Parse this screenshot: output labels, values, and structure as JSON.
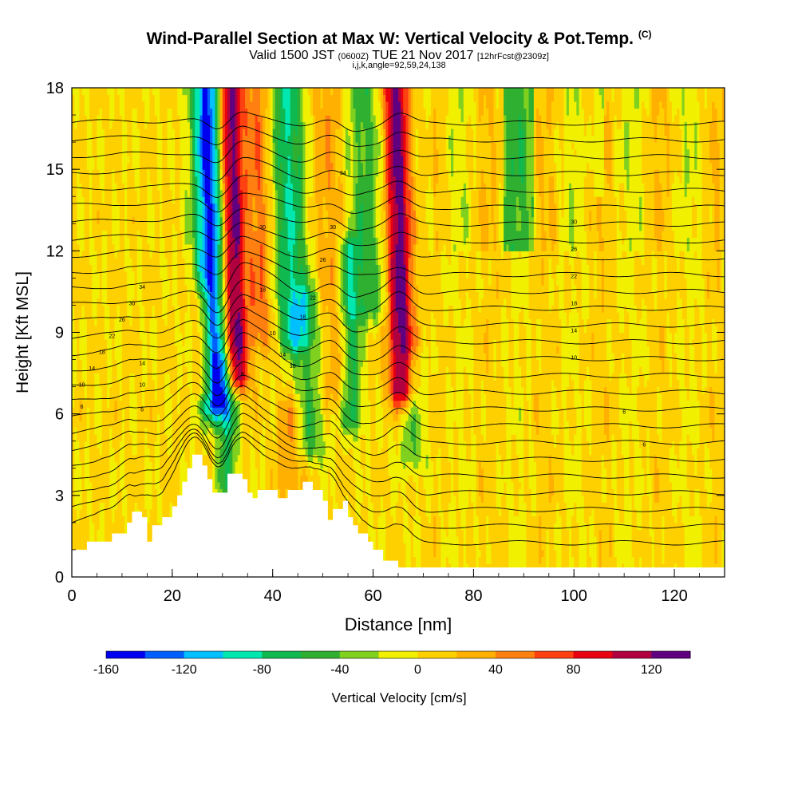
{
  "title": {
    "main": "Wind-Parallel Section at Max W: Vertical Velocity & Pot.Temp.",
    "main_suffix": "(C)",
    "sub_a": "Valid 1500 JST",
    "sub_b": "(0600Z)",
    "sub_c": "TUE 21 Nov 2017",
    "sub_d": "[12hrFcst@2309z]",
    "indices": "i,j,k,angle=92,59,24,138"
  },
  "colorbar": {
    "label": "Vertical Velocity [cm/s]",
    "ticks": [
      "-160",
      "-120",
      "-80",
      "-40",
      "0",
      "40",
      "80",
      "120"
    ],
    "bounds": [
      -160,
      140
    ],
    "colors": [
      "#0000f0",
      "#0060ff",
      "#00c0ff",
      "#00e8b0",
      "#10b850",
      "#30b030",
      "#80d020",
      "#f0f000",
      "#ffd000",
      "#ffb000",
      "#ff8010",
      "#ff4010",
      "#e80010",
      "#b00040",
      "#600080"
    ]
  },
  "chart_data": {
    "type": "heatmap",
    "title": "Wind-Parallel Section at Max W: Vertical Velocity & Pot.Temp.",
    "xlabel": "Distance [nm]",
    "ylabel": "Height [Kft MSL]",
    "xlim": [
      0,
      130
    ],
    "ylim": [
      0,
      18
    ],
    "x_ticks": [
      "0",
      "20",
      "40",
      "60",
      "80",
      "100",
      "120"
    ],
    "y_ticks": [
      "0",
      "3",
      "6",
      "9",
      "12",
      "15",
      "18"
    ],
    "fill_variable": "Vertical Velocity [cm/s]",
    "contour_variable": "Pot.Temp. (C)",
    "contour_levels": [
      6,
      10,
      14,
      18,
      22,
      26,
      30,
      34,
      38,
      42,
      46,
      50,
      54,
      58,
      62,
      66,
      70,
      74,
      78,
      82,
      86,
      90,
      94,
      98,
      102,
      106
    ],
    "contour_label_texts": [
      "6",
      "10",
      "14",
      "18",
      "22",
      "26",
      "30",
      "34",
      "14",
      "10",
      "6",
      "6",
      "30",
      "18",
      "10",
      "14",
      "10",
      "18",
      "22",
      "26",
      "30",
      "34",
      "30",
      "26",
      "22",
      "18",
      "14",
      "10",
      "6",
      "6"
    ],
    "velocity_features": [
      {
        "x_center": 28,
        "width": 3.0,
        "w": -155,
        "ybot": 6.5,
        "ytop": 18
      },
      {
        "x_center": 32.5,
        "width": 2.5,
        "w": 135,
        "ybot": 7.5,
        "ytop": 18
      },
      {
        "x_center": 30.5,
        "width": 2.0,
        "w": -70,
        "ybot": 3.5,
        "ytop": 7.5
      },
      {
        "x_center": 26,
        "width": 2.0,
        "w": 70,
        "ybot": 7,
        "ytop": 10
      },
      {
        "x_center": 38,
        "width": 2.5,
        "w": 55,
        "ybot": 9,
        "ytop": 18
      },
      {
        "x_center": 44,
        "width": 3.5,
        "w": -85,
        "ybot": 9,
        "ytop": 18
      },
      {
        "x_center": 47,
        "width": 3.0,
        "w": -55,
        "ybot": 5,
        "ytop": 10
      },
      {
        "x_center": 52,
        "width": 4.0,
        "w": 35,
        "ybot": 7,
        "ytop": 18
      },
      {
        "x_center": 55.5,
        "width": 2.0,
        "w": -75,
        "ybot": 6,
        "ytop": 12
      },
      {
        "x_center": 59,
        "width": 4.0,
        "w": -55,
        "ybot": 10,
        "ytop": 18
      },
      {
        "x_center": 65.5,
        "width": 2.5,
        "w": 135,
        "ybot": 7,
        "ytop": 18
      },
      {
        "x_center": 67.5,
        "width": 2.5,
        "w": -40,
        "ybot": 4.5,
        "ytop": 7.5
      },
      {
        "x_center": 43,
        "width": 2.5,
        "w": 40,
        "ybot": 3.5,
        "ytop": 6
      }
    ],
    "terrain_kft": [
      [
        0,
        1.0
      ],
      [
        3,
        1.0
      ],
      [
        3,
        1.3
      ],
      [
        8,
        1.3
      ],
      [
        8,
        1.6
      ],
      [
        11,
        1.6
      ],
      [
        11,
        2.0
      ],
      [
        12,
        2.0
      ],
      [
        12,
        2.4
      ],
      [
        14,
        2.4
      ],
      [
        14,
        2.2
      ],
      [
        15,
        2.2
      ],
      [
        15,
        1.3
      ],
      [
        16,
        1.3
      ],
      [
        16,
        1.9
      ],
      [
        18,
        1.9
      ],
      [
        18,
        2.2
      ],
      [
        20,
        2.2
      ],
      [
        20,
        2.6
      ],
      [
        21,
        2.6
      ],
      [
        21,
        3.0
      ],
      [
        22,
        3.0
      ],
      [
        22,
        3.5
      ],
      [
        23,
        3.5
      ],
      [
        23,
        4.0
      ],
      [
        24,
        4.0
      ],
      [
        24,
        4.5
      ],
      [
        26,
        4.5
      ],
      [
        26,
        4.1
      ],
      [
        27,
        4.1
      ],
      [
        27,
        3.6
      ],
      [
        28,
        3.6
      ],
      [
        28,
        3.1
      ],
      [
        31,
        3.1
      ],
      [
        31,
        3.8
      ],
      [
        34,
        3.8
      ],
      [
        34,
        3.6
      ],
      [
        35,
        3.6
      ],
      [
        35,
        3.1
      ],
      [
        36,
        3.1
      ],
      [
        36,
        2.9
      ],
      [
        37,
        2.9
      ],
      [
        37,
        3.2
      ],
      [
        41,
        3.2
      ],
      [
        41,
        2.9
      ],
      [
        43,
        2.9
      ],
      [
        43,
        3.2
      ],
      [
        46,
        3.2
      ],
      [
        46,
        3.5
      ],
      [
        48,
        3.5
      ],
      [
        48,
        3.2
      ],
      [
        50,
        3.2
      ],
      [
        50,
        2.8
      ],
      [
        51,
        2.8
      ],
      [
        51,
        2.1
      ],
      [
        52,
        2.1
      ],
      [
        52,
        2.5
      ],
      [
        54,
        2.5
      ],
      [
        54,
        2.8
      ],
      [
        55,
        2.8
      ],
      [
        55,
        2.2
      ],
      [
        56,
        2.2
      ],
      [
        56,
        1.9
      ],
      [
        57,
        1.9
      ],
      [
        57,
        1.6
      ],
      [
        59,
        1.6
      ],
      [
        59,
        1.3
      ],
      [
        60,
        1.3
      ],
      [
        60,
        1.0
      ],
      [
        62,
        1.0
      ],
      [
        62,
        0.6
      ],
      [
        65,
        0.6
      ],
      [
        65,
        0.35
      ],
      [
        130,
        0.35
      ]
    ]
  }
}
